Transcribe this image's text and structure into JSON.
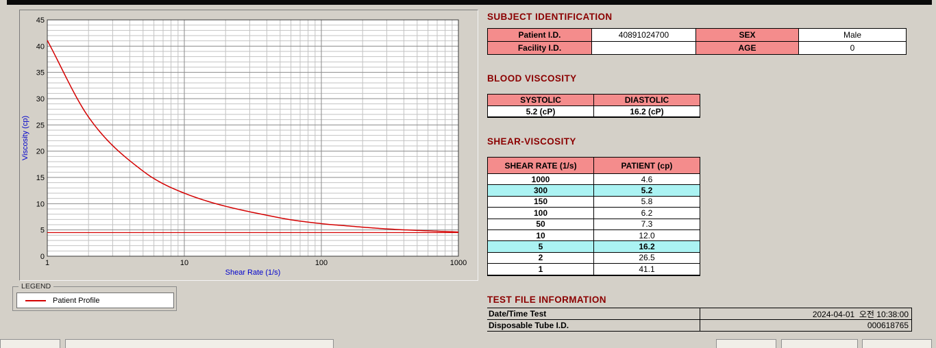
{
  "legend": {
    "title": "LEGEND",
    "entry": "Patient Profile"
  },
  "subject_identification": {
    "heading": "SUBJECT IDENTIFICATION",
    "rows": [
      {
        "label1": "Patient I.D.",
        "value1": "40891024700",
        "label2": "SEX",
        "value2": "Male"
      },
      {
        "label1": "Facility I.D.",
        "value1": "",
        "label2": "AGE",
        "value2": "0"
      }
    ]
  },
  "blood_viscosity": {
    "heading": "BLOOD VISCOSITY",
    "columns": [
      "SYSTOLIC",
      "DIASTOLIC"
    ],
    "values": [
      "5.2 (cP)",
      "16.2 (cP)"
    ]
  },
  "shear_viscosity": {
    "heading": "SHEAR-VISCOSITY",
    "columns": [
      "SHEAR RATE (1/s)",
      "PATIENT (cp)"
    ],
    "rows": [
      {
        "rate": "1000",
        "patient": "4.6",
        "highlight": false
      },
      {
        "rate": "300",
        "patient": "5.2",
        "highlight": true
      },
      {
        "rate": "150",
        "patient": "5.8",
        "highlight": false
      },
      {
        "rate": "100",
        "patient": "6.2",
        "highlight": false
      },
      {
        "rate": "50",
        "patient": "7.3",
        "highlight": false
      },
      {
        "rate": "10",
        "patient": "12.0",
        "highlight": false
      },
      {
        "rate": "5",
        "patient": "16.2",
        "highlight": true
      },
      {
        "rate": "2",
        "patient": "26.5",
        "highlight": false
      },
      {
        "rate": "1",
        "patient": "41.1",
        "highlight": false
      }
    ]
  },
  "test_file_information": {
    "heading": "TEST FILE INFORMATION",
    "rows": [
      {
        "label": "Date/Time Test",
        "value": "2024-04-01  오전 10:38:00"
      },
      {
        "label": "Disposable Tube I.D.",
        "value": "000618765"
      }
    ]
  },
  "colors": {
    "heading": "#8b0000",
    "table_header_bg": "#f48c8c",
    "highlight_bg": "#abf3f3",
    "series": "#d40000",
    "axis_label": "#0000cc",
    "grid_minor": "#c2c2c2",
    "grid_major": "#8a8a8a"
  },
  "chart_data": {
    "type": "line",
    "title": "",
    "xlabel": "Shear Rate (1/s)",
    "ylabel": "Viscosity (cp)",
    "x_scale": "log",
    "xlim": [
      1,
      1000
    ],
    "ylim": [
      0,
      45
    ],
    "x_ticks": [
      1,
      10,
      100,
      1000
    ],
    "y_ticks": [
      0,
      5,
      10,
      15,
      20,
      25,
      30,
      35,
      40,
      45
    ],
    "grid": "dense",
    "legend_position": "below-left",
    "series": [
      {
        "name": "Patient Profile",
        "color": "#d40000",
        "x": [
          1,
          2,
          5,
          10,
          50,
          100,
          150,
          300,
          1000
        ],
        "y": [
          41.1,
          26.5,
          16.2,
          12.0,
          7.3,
          6.2,
          5.8,
          5.2,
          4.6
        ]
      },
      {
        "name": "baseline",
        "color": "#d40000",
        "x": [
          1,
          1000
        ],
        "y": [
          4.5,
          4.5
        ]
      }
    ]
  }
}
